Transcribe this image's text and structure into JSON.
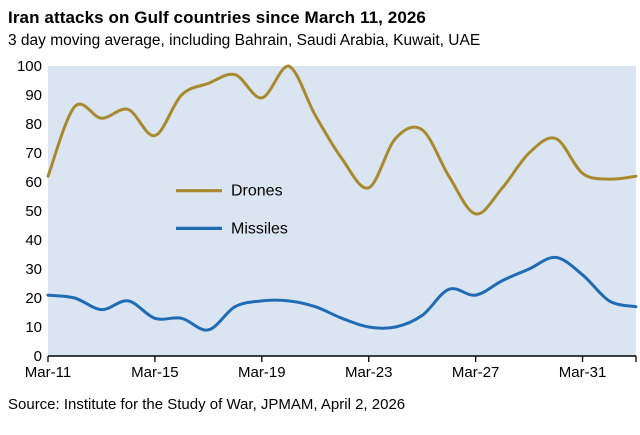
{
  "title": "Iran attacks on Gulf countries since March 11, 2026",
  "subtitle": "3 day moving average, including Bahrain, Saudi Arabia, Kuwait, UAE",
  "source": "Source: Institute for the Study of War, JPMAM, April 2, 2026",
  "chart_data": {
    "type": "line",
    "x": [
      11,
      12,
      13,
      14,
      15,
      16,
      17,
      18,
      19,
      20,
      21,
      22,
      23,
      24,
      25,
      26,
      27,
      28,
      29,
      30,
      31,
      32,
      33
    ],
    "x_note": "x = day of March 2026 (32 = Apr-1, 33 = Apr-2)",
    "x_tick_values": [
      11,
      15,
      19,
      23,
      27,
      31
    ],
    "x_tick_labels": [
      "Mar-11",
      "Mar-15",
      "Mar-19",
      "Mar-23",
      "Mar-27",
      "Mar-31"
    ],
    "ylim": [
      0,
      100
    ],
    "y_ticks": [
      0,
      10,
      20,
      30,
      40,
      50,
      60,
      70,
      80,
      90,
      100
    ],
    "series": [
      {
        "name": "Drones",
        "color": "#A8892E",
        "values": [
          62,
          86,
          82,
          85,
          76,
          90,
          94,
          97,
          89,
          100,
          83,
          68,
          58,
          75,
          78,
          62,
          49,
          58,
          70,
          75,
          63,
          61,
          62
        ]
      },
      {
        "name": "Missiles",
        "color": "#1F6CB4",
        "values": [
          21,
          20,
          16,
          19,
          13,
          13,
          9,
          17,
          19,
          19,
          17,
          13,
          10,
          10,
          14,
          23,
          21,
          26,
          30,
          34,
          28,
          19,
          17
        ]
      }
    ],
    "plot_bg": "#DBE5F1",
    "axis_color": "#000000",
    "grid": "off",
    "legend_position": "inside-left"
  }
}
